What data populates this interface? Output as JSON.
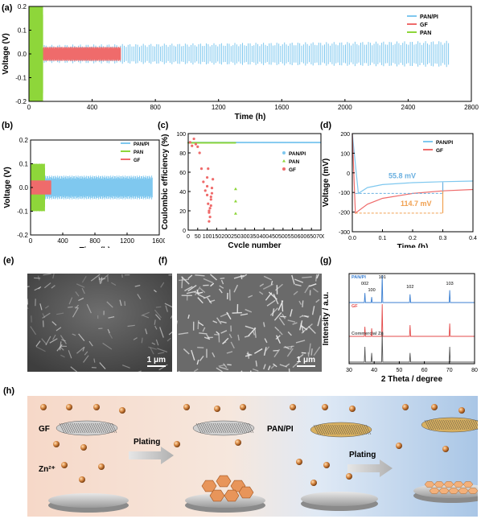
{
  "panel_labels": {
    "a": "(a)",
    "b": "(b)",
    "c": "(c)",
    "d": "(d)",
    "e": "(e)",
    "f": "(f)",
    "g": "(g)",
    "h": "(h)"
  },
  "colors": {
    "pan_pi": "#7fc8ef",
    "gf": "#ef6b6b",
    "pan": "#8ed63a",
    "xrd_pan_pi": "#3b7fd1",
    "xrd_gf": "#e34b4b",
    "xrd_zn": "#555555",
    "annot_blue": "#6ab0e0",
    "annot_orange": "#f0a050"
  },
  "chart_data": [
    {
      "id": "a",
      "type": "line",
      "xlabel": "Time (h)",
      "ylabel": "Voltage (V)",
      "xlim": [
        0,
        2900
      ],
      "ylim": [
        -0.2,
        0.2
      ],
      "xticks": [
        "0",
        "400",
        "800",
        "1200",
        "1600",
        "2000",
        "2400",
        "2800"
      ],
      "yticks": [
        "-0.2",
        "-0.1",
        "0.0",
        "0.1",
        "0.2"
      ],
      "legend": [
        "PAN/PI",
        "GF",
        "PAN"
      ],
      "series": [
        {
          "name": "PAN/PI",
          "end_time_h": 2750,
          "amplitude_V": 0.05
        },
        {
          "name": "GF",
          "end_time_h": 600,
          "amplitude_V": 0.03
        },
        {
          "name": "PAN",
          "end_time_h": 90,
          "amplitude_V": 0.2
        }
      ]
    },
    {
      "id": "b",
      "type": "line",
      "xlabel": "Time (h)",
      "ylabel": "Voltage (V)",
      "xlim": [
        0,
        1650
      ],
      "ylim": [
        -0.2,
        0.2
      ],
      "xticks": [
        "0",
        "400",
        "800",
        "1200",
        "1600"
      ],
      "yticks": [
        "-0.2",
        "-0.1",
        "0.0",
        "0.1",
        "0.2"
      ],
      "legend": [
        "PAN/PI",
        "PAN",
        "GF"
      ],
      "series": [
        {
          "name": "PAN/PI",
          "end_time_h": 1560,
          "amplitude_V": 0.05
        },
        {
          "name": "PAN",
          "end_time_h": 180,
          "amplitude_V": 0.1
        },
        {
          "name": "GF",
          "end_time_h": 260,
          "amplitude_V": 0.03
        }
      ]
    },
    {
      "id": "c",
      "type": "scatter",
      "xlabel": "Cycle number",
      "ylabel": "Coulombic efficiency (%)",
      "xlim": [
        0,
        700
      ],
      "ylim": [
        0,
        110
      ],
      "xticks": [
        "0",
        "50",
        "100",
        "150",
        "200",
        "250",
        "300",
        "350",
        "400",
        "450",
        "500",
        "550",
        "600",
        "650",
        "700"
      ],
      "yticks": [
        "0",
        "20",
        "40",
        "60",
        "80",
        "100"
      ],
      "legend": [
        "PAN/PI",
        "PAN",
        "GF"
      ],
      "series": [
        {
          "name": "PAN/PI",
          "cycles": 700,
          "ce_percent": 99.8
        },
        {
          "name": "PAN",
          "cycles": [
            250,
            250,
            250
          ],
          "ce_percent": [
            47,
            33,
            19
          ]
        },
        {
          "name": "GF",
          "cycles": [
            10,
            20,
            30,
            40,
            50,
            60,
            70,
            80,
            90,
            100,
            105,
            110,
            115,
            120,
            125,
            130,
            100,
            105,
            110,
            115,
            120,
            125,
            100,
            110,
            120
          ],
          "ce_percent": [
            100,
            96,
            104,
            98,
            95,
            88,
            70,
            55,
            45,
            40,
            30,
            20,
            25,
            35,
            48,
            58,
            60,
            70,
            10,
            15,
            28,
            42,
            50,
            22,
            38
          ]
        }
      ]
    },
    {
      "id": "d",
      "type": "line",
      "xlabel": "Time (h)",
      "ylabel": "Voltage (mV)",
      "xlim": [
        0,
        0.4
      ],
      "ylim": [
        -300,
        200
      ],
      "xticks": [
        "0.0",
        "0.1",
        "0.2",
        "0.3",
        "0.4"
      ],
      "yticks": [
        "-300",
        "-200",
        "-100",
        "0",
        "100",
        "200"
      ],
      "legend": [
        "PAN/PI",
        "GF"
      ],
      "annotations": [
        "55.8 mV",
        "114.7 mV"
      ],
      "series": [
        {
          "name": "PAN/PI",
          "t": [
            0.0,
            0.02,
            0.05,
            0.1,
            0.2,
            0.3,
            0.4
          ],
          "v": [
            200,
            -105,
            -75,
            -60,
            -50,
            -45,
            -42
          ]
        },
        {
          "name": "GF",
          "t": [
            0.0,
            0.01,
            0.05,
            0.1,
            0.2,
            0.3,
            0.4
          ],
          "v": [
            200,
            -205,
            -160,
            -130,
            -105,
            -92,
            -85
          ]
        }
      ]
    },
    {
      "id": "g",
      "type": "line",
      "xlabel": "2 Theta / degree",
      "ylabel": "Intensity / a.u.",
      "xlim": [
        30,
        80
      ],
      "xticks": [
        "30",
        "40",
        "50",
        "60",
        "70",
        "80"
      ],
      "peak_labels": [
        "002",
        "100",
        "101",
        "102",
        "103"
      ],
      "series": [
        {
          "name": "PAN/PI",
          "peaks_2theta": [
            36.3,
            39.0,
            43.2,
            54.3,
            70.1
          ],
          "rel_height": [
            0.35,
            0.2,
            1.0,
            0.3,
            0.45
          ]
        },
        {
          "name": "GF",
          "peaks_2theta": [
            36.3,
            39.0,
            43.2,
            54.3,
            70.1
          ],
          "rel_height": [
            0.3,
            0.25,
            1.0,
            0.35,
            0.4
          ]
        },
        {
          "name": "Commercial Zn",
          "peaks_2theta": [
            36.3,
            39.0,
            43.2,
            54.3,
            70.1
          ],
          "rel_height": [
            0.5,
            0.3,
            1.0,
            0.3,
            0.5
          ]
        }
      ]
    }
  ],
  "sem_e": {
    "scale": "1 μm"
  },
  "sem_f": {
    "scale": "1 μm"
  },
  "schematic": {
    "gf_label": "GF",
    "zn_label": "Zn²⁺",
    "plating_label": "Plating",
    "panpi_label": "PAN/PI"
  }
}
